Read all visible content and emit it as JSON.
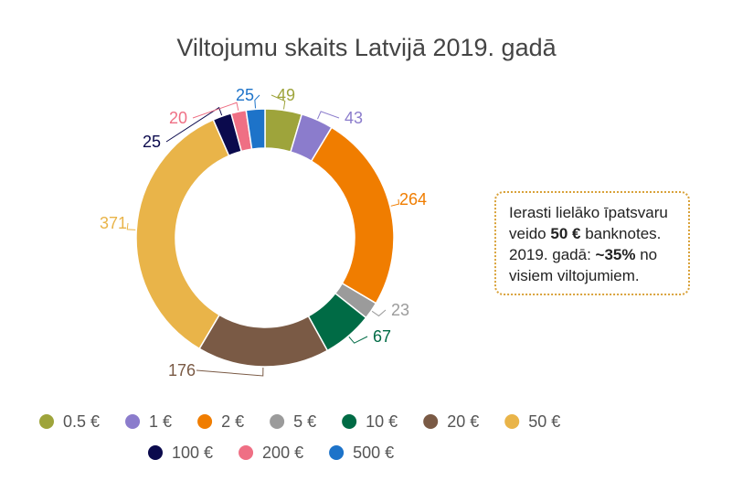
{
  "chart_data": {
    "type": "donut",
    "title": "Viltojumu skaits Latvijā 2019. gadā",
    "categories": [
      "0.5 €",
      "1 €",
      "2 €",
      "5 €",
      "10 €",
      "20 €",
      "50 €",
      "100 €",
      "200 €",
      "500 €"
    ],
    "values": [
      49,
      43,
      264,
      23,
      67,
      176,
      371,
      25,
      20,
      25
    ],
    "colors": [
      "#9ea43b",
      "#8b7ccc",
      "#f07d00",
      "#9b9b9b",
      "#006b45",
      "#7a5a45",
      "#e9b449",
      "#0b0a4d",
      "#ef6f84",
      "#1d73c9"
    ],
    "legend_rows": [
      [
        "0.5 €",
        "1 €",
        "2 €",
        "5 €",
        "10 €",
        "20 €",
        "50 €"
      ],
      [
        "100 €",
        "200 €",
        "500 €"
      ]
    ],
    "legend": "bottom"
  },
  "annotation": {
    "line1": "Ierasti lielāko īpatsvaru",
    "line2_pre": "veido ",
    "line2_bold": "50 €",
    "line2_post": " banknotes.",
    "line3_pre": "2019. gadā: ",
    "line3_bold": "~35%",
    "line3_post": " no",
    "line4": "visiem viltojumiem."
  }
}
